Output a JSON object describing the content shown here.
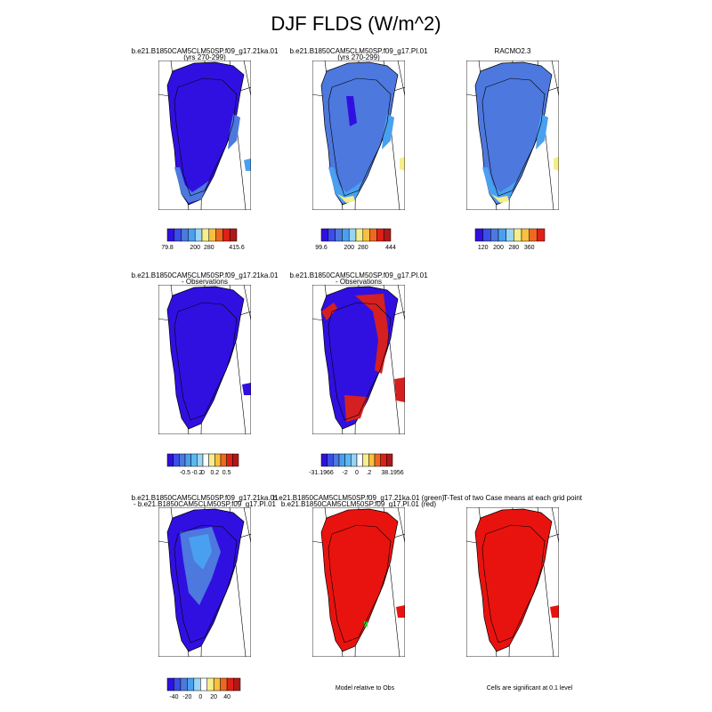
{
  "figure": {
    "title": "DJF FLDS (W/m^2)",
    "notes": {
      "model_relative": "Model relative to Obs",
      "significance": "Cells are significant at 0.1 level"
    }
  },
  "panels": [
    {
      "row": 0,
      "col": 0,
      "title": [
        "b.e21.B1850CAM5CLM50SP.f09_g17.21ka.01",
        "(yrs 270-299)"
      ],
      "fill": "abs_dark"
    },
    {
      "row": 0,
      "col": 1,
      "title": [
        "b.e21.B1850CAM5CLM50SP.f09_g17.PI.01",
        "(yrs 270-299)"
      ],
      "fill": "abs_mid"
    },
    {
      "row": 0,
      "col": 2,
      "title": [
        "RACMO2.3"
      ],
      "fill": "abs_obs"
    },
    {
      "row": 1,
      "col": 0,
      "title": [
        "b.e21.B1850CAM5CLM50SP.f09_g17.21ka.01",
        "- Observations"
      ],
      "fill": "diff_blue"
    },
    {
      "row": 1,
      "col": 1,
      "title": [
        "b.e21.B1850CAM5CLM50SP.f09_g17.PI.01",
        "- Observations"
      ],
      "fill": "diff_mixed"
    },
    {
      "row": 2,
      "col": 0,
      "title": [
        "b.e21.B1850CAM5CLM50SP.f09_g17.21ka.01",
        "- b.e21.B1850CAM5CLM50SP.f09_g17.PI.01"
      ],
      "fill": "diff_case"
    },
    {
      "row": 2,
      "col": 1,
      "title": [
        "b.e21.B1850CAM5CLM50SP.f09_g17.21ka.01 (green)",
        "b.e21.B1850CAM5CLM50SP.f09_g17.PI.01 (red)"
      ],
      "fill": "rel_red"
    },
    {
      "row": 2,
      "col": 2,
      "title": [
        "T-Test of two Case means at each grid point"
      ],
      "fill": "sig_red"
    }
  ],
  "colorbars": [
    {
      "panel": "0-0",
      "colors": [
        "#3010e0",
        "#3a4ee8",
        "#4d78de",
        "#4aa0f0",
        "#98d4f4",
        "#f4ee8c",
        "#f8c040",
        "#f06820",
        "#e02018",
        "#b01818"
      ],
      "labels": [
        "79.8",
        "200",
        "280",
        "415.6"
      ],
      "label_positions": [
        0,
        4,
        6,
        10
      ]
    },
    {
      "panel": "0-1",
      "colors": [
        "#3010e0",
        "#3a4ee8",
        "#4d78de",
        "#4aa0f0",
        "#98d4f4",
        "#f4ee8c",
        "#f8c040",
        "#f06820",
        "#e02018",
        "#b01818"
      ],
      "labels": [
        "99.6",
        "200",
        "280",
        "444"
      ],
      "label_positions": [
        0,
        4,
        6,
        10
      ]
    },
    {
      "panel": "0-2",
      "colors": [
        "#3010e0",
        "#3a4ee8",
        "#4d78de",
        "#4aa0f0",
        "#98d4f4",
        "#f4ee8c",
        "#f8c040",
        "#f06820",
        "#e02018"
      ],
      "labels": [
        "120",
        "200",
        "280",
        "360"
      ],
      "label_positions": [
        1,
        3,
        5,
        7
      ]
    },
    {
      "panel": "1-0",
      "colors": [
        "#3010e0",
        "#3a4ee8",
        "#4d78de",
        "#4aa0f0",
        "#5cb8f0",
        "#98d4f4",
        "#ffffff",
        "#f4ee8c",
        "#f8c040",
        "#f06820",
        "#e02018",
        "#b01818"
      ],
      "labels": [
        "-0.5",
        "-0.2",
        "0",
        "0.2",
        "0.5"
      ],
      "label_positions": [
        3,
        5,
        6,
        8,
        10
      ]
    },
    {
      "panel": "1-1",
      "colors": [
        "#3010e0",
        "#3a4ee8",
        "#4d78de",
        "#4aa0f0",
        "#5cb8f0",
        "#98d4f4",
        "#ffffff",
        "#f4ee8c",
        "#f8c040",
        "#f06820",
        "#e02018",
        "#b01818"
      ],
      "labels": [
        "-31.1966",
        "-2",
        "0",
        ".2",
        "38.1956"
      ],
      "label_positions": [
        0,
        4,
        6,
        8,
        12
      ]
    },
    {
      "panel": "2-0",
      "colors": [
        "#3010e0",
        "#3a4ee8",
        "#4d78de",
        "#4aa0f0",
        "#98d4f4",
        "#ffffff",
        "#f4ee8c",
        "#f8c040",
        "#f06820",
        "#e02018",
        "#b01818"
      ],
      "labels": [
        "-40",
        "-20",
        "0",
        "20",
        "40"
      ],
      "label_positions": [
        1,
        3,
        5,
        7,
        9
      ]
    }
  ],
  "colors": {
    "ocean": "#ffffff",
    "deep_blue": "#3010e0",
    "mid_blue": "#4d78de",
    "light_blue": "#4aa0f0",
    "pale_blue": "#98d4f4",
    "yellow": "#f4ee8c",
    "red": "#e8130f",
    "dark_red": "#d42020",
    "green": "#32c832"
  }
}
